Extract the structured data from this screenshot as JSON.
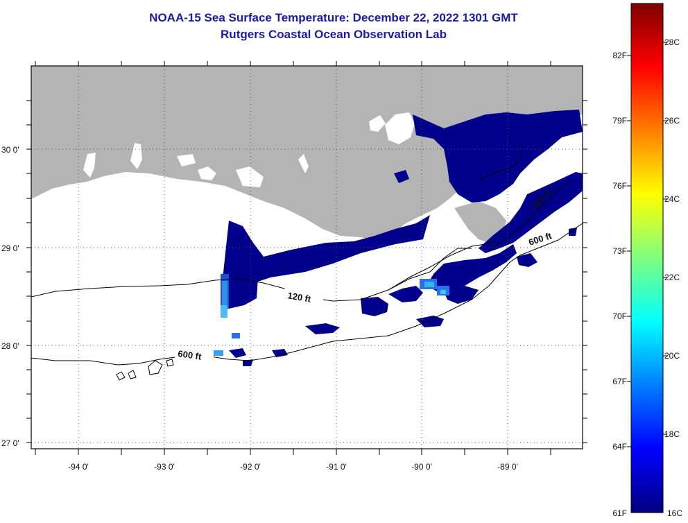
{
  "title": "NOAA-15 Sea Surface Temperature:  December 22, 2022 1301 GMT",
  "subtitle": "Rutgers Coastal Ocean Observation Lab",
  "map": {
    "lat_labels": [
      "30 0'",
      "29 0'",
      "28 0'",
      "27 0'"
    ],
    "lon_labels": [
      "-94 0'",
      "-93 0'",
      "-92 0'",
      "-91 0'",
      "-90 0'",
      "-89 0'"
    ],
    "contour_labels": [
      "120 ft",
      "600 ft",
      "600 ft",
      "600 ft"
    ],
    "colors": {
      "land": "#b4b4b4",
      "water_cold": "#00008c",
      "grid": "#444444"
    }
  },
  "colorbar": {
    "f_labels": [
      "82F",
      "79F",
      "76F",
      "73F",
      "70F",
      "67F",
      "64F",
      "61F"
    ],
    "c_labels": [
      "28C",
      "26C",
      "24C",
      "22C",
      "20C",
      "18C",
      "16C"
    ],
    "stops": [
      "#00007f",
      "#0000ff",
      "#007fff",
      "#00ffff",
      "#7fff7f",
      "#ffff00",
      "#ff7f00",
      "#ff0000",
      "#7f0000"
    ]
  }
}
